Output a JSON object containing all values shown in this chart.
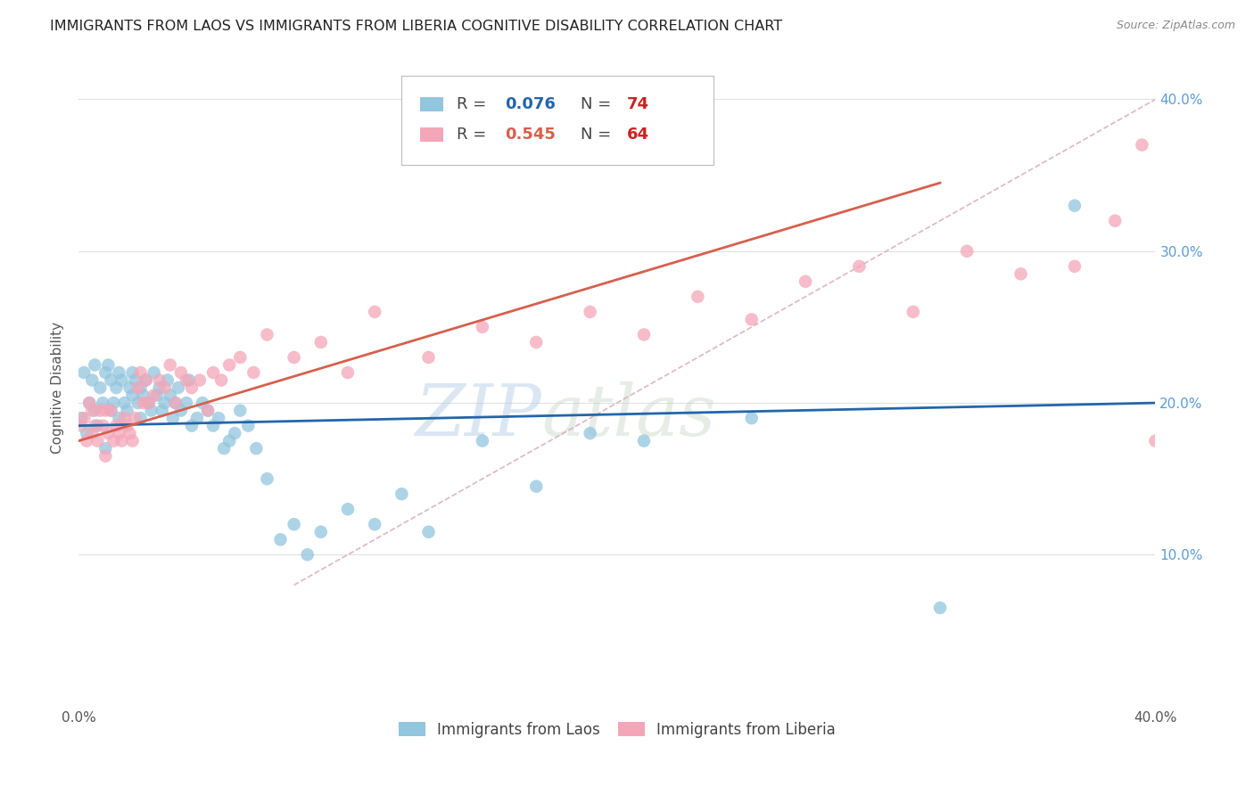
{
  "title": "IMMIGRANTS FROM LAOS VS IMMIGRANTS FROM LIBERIA COGNITIVE DISABILITY CORRELATION CHART",
  "source": "Source: ZipAtlas.com",
  "ylabel": "Cognitive Disability",
  "x_min": 0.0,
  "x_max": 0.4,
  "y_min": 0.0,
  "y_max": 0.42,
  "y_ticks": [
    0.0,
    0.1,
    0.2,
    0.3,
    0.4
  ],
  "y_tick_labels_right": [
    "",
    "10.0%",
    "20.0%",
    "30.0%",
    "40.0%"
  ],
  "color_laos": "#92c5de",
  "color_liberia": "#f4a6b8",
  "color_line_laos": "#2166ac",
  "color_line_liberia": "#d6604d",
  "color_diagonal": "#d9a9b8",
  "R_laos": 0.076,
  "N_laos": 74,
  "R_liberia": 0.545,
  "N_liberia": 64,
  "watermark_zip": "ZIP",
  "watermark_atlas": "atlas",
  "background_color": "#ffffff",
  "grid_color": "#e0e0e0",
  "laos_x": [
    0.001,
    0.002,
    0.003,
    0.004,
    0.005,
    0.006,
    0.006,
    0.007,
    0.008,
    0.009,
    0.01,
    0.01,
    0.011,
    0.012,
    0.012,
    0.013,
    0.014,
    0.015,
    0.015,
    0.016,
    0.017,
    0.018,
    0.019,
    0.02,
    0.02,
    0.021,
    0.022,
    0.023,
    0.023,
    0.024,
    0.025,
    0.026,
    0.027,
    0.028,
    0.029,
    0.03,
    0.031,
    0.032,
    0.033,
    0.034,
    0.035,
    0.036,
    0.037,
    0.038,
    0.04,
    0.041,
    0.042,
    0.044,
    0.046,
    0.048,
    0.05,
    0.052,
    0.054,
    0.056,
    0.058,
    0.06,
    0.063,
    0.066,
    0.07,
    0.075,
    0.08,
    0.085,
    0.09,
    0.1,
    0.11,
    0.12,
    0.13,
    0.15,
    0.17,
    0.19,
    0.21,
    0.25,
    0.32,
    0.37
  ],
  "laos_y": [
    0.19,
    0.22,
    0.18,
    0.2,
    0.215,
    0.225,
    0.195,
    0.185,
    0.21,
    0.2,
    0.22,
    0.17,
    0.225,
    0.215,
    0.195,
    0.2,
    0.21,
    0.22,
    0.19,
    0.215,
    0.2,
    0.195,
    0.21,
    0.205,
    0.22,
    0.215,
    0.2,
    0.21,
    0.19,
    0.205,
    0.215,
    0.2,
    0.195,
    0.22,
    0.205,
    0.21,
    0.195,
    0.2,
    0.215,
    0.205,
    0.19,
    0.2,
    0.21,
    0.195,
    0.2,
    0.215,
    0.185,
    0.19,
    0.2,
    0.195,
    0.185,
    0.19,
    0.17,
    0.175,
    0.18,
    0.195,
    0.185,
    0.17,
    0.15,
    0.11,
    0.12,
    0.1,
    0.115,
    0.13,
    0.12,
    0.14,
    0.115,
    0.175,
    0.145,
    0.18,
    0.175,
    0.19,
    0.065,
    0.33
  ],
  "liberia_x": [
    0.001,
    0.002,
    0.003,
    0.004,
    0.005,
    0.005,
    0.006,
    0.007,
    0.008,
    0.009,
    0.01,
    0.01,
    0.011,
    0.012,
    0.013,
    0.014,
    0.015,
    0.016,
    0.017,
    0.018,
    0.019,
    0.02,
    0.021,
    0.022,
    0.023,
    0.024,
    0.025,
    0.026,
    0.028,
    0.03,
    0.032,
    0.034,
    0.036,
    0.038,
    0.04,
    0.042,
    0.045,
    0.048,
    0.05,
    0.053,
    0.056,
    0.06,
    0.065,
    0.07,
    0.08,
    0.09,
    0.1,
    0.11,
    0.13,
    0.15,
    0.17,
    0.19,
    0.21,
    0.23,
    0.25,
    0.27,
    0.29,
    0.31,
    0.33,
    0.35,
    0.37,
    0.385,
    0.395,
    0.4
  ],
  "liberia_y": [
    0.185,
    0.19,
    0.175,
    0.2,
    0.195,
    0.18,
    0.185,
    0.175,
    0.195,
    0.185,
    0.195,
    0.165,
    0.18,
    0.195,
    0.175,
    0.185,
    0.18,
    0.175,
    0.19,
    0.185,
    0.18,
    0.175,
    0.19,
    0.21,
    0.22,
    0.2,
    0.215,
    0.2,
    0.205,
    0.215,
    0.21,
    0.225,
    0.2,
    0.22,
    0.215,
    0.21,
    0.215,
    0.195,
    0.22,
    0.215,
    0.225,
    0.23,
    0.22,
    0.245,
    0.23,
    0.24,
    0.22,
    0.26,
    0.23,
    0.25,
    0.24,
    0.26,
    0.245,
    0.27,
    0.255,
    0.28,
    0.29,
    0.26,
    0.3,
    0.285,
    0.29,
    0.32,
    0.37,
    0.175
  ]
}
